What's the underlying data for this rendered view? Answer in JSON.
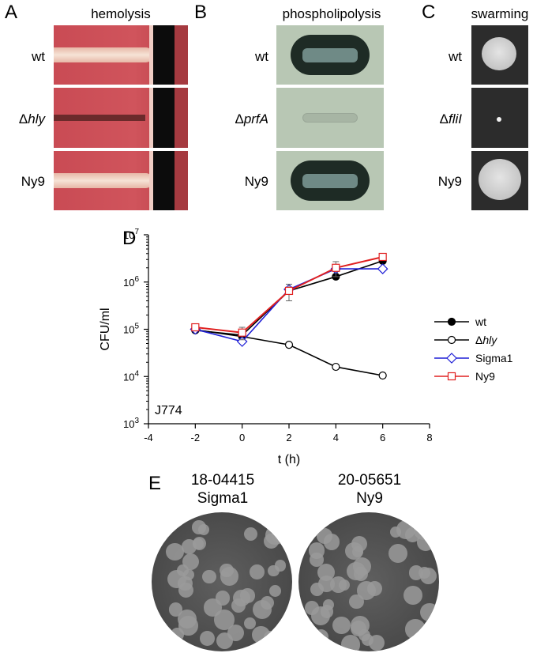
{
  "panels": {
    "A": {
      "letter": "A",
      "title": "hemolysis",
      "rows": [
        {
          "pre": "",
          "ital": "",
          "post": "wt"
        },
        {
          "pre": "Δ",
          "ital": "hly",
          "post": ""
        },
        {
          "pre": "",
          "ital": "",
          "post": "Ny9"
        }
      ]
    },
    "B": {
      "letter": "B",
      "title": "phospholipolysis",
      "rows": [
        {
          "pre": "",
          "ital": "",
          "post": "wt"
        },
        {
          "pre": "Δ",
          "ital": "prfA",
          "post": ""
        },
        {
          "pre": "",
          "ital": "",
          "post": "Ny9"
        }
      ]
    },
    "C": {
      "letter": "C",
      "title": "swarming",
      "rows": [
        {
          "pre": "",
          "ital": "",
          "post": "wt"
        },
        {
          "pre": "Δ",
          "ital": "fliI",
          "post": ""
        },
        {
          "pre": "",
          "ital": "",
          "post": "Ny9"
        }
      ]
    },
    "D": {
      "letter": "D"
    },
    "E": {
      "letter": "E",
      "plates": [
        {
          "line1": "18-04415",
          "line2": "Sigma1"
        },
        {
          "line1": "20-05651",
          "line2": "Ny9"
        }
      ]
    }
  },
  "chart_data": {
    "type": "line",
    "title": "",
    "xlabel": "t (h)",
    "ylabel": "CFU/ml",
    "annotation": "J774",
    "xlim": [
      -4,
      8
    ],
    "xticks": [
      -4,
      -2,
      0,
      2,
      4,
      6,
      8
    ],
    "ylim_log10": [
      3,
      7
    ],
    "yscale": "log",
    "yticks": [
      {
        "base": "10",
        "exp": "3"
      },
      {
        "base": "10",
        "exp": "4"
      },
      {
        "base": "10",
        "exp": "5"
      },
      {
        "base": "10",
        "exp": "6"
      },
      {
        "base": "10",
        "exp": "7"
      }
    ],
    "legend_position": "right",
    "series": [
      {
        "name": "wt",
        "italic_part": "",
        "prefix": "",
        "color": "#000000",
        "marker": "filled-circle",
        "x": [
          -2,
          0,
          2,
          4,
          6
        ],
        "y": [
          95000,
          75000,
          650000,
          1300000,
          2800000
        ],
        "err": [
          0,
          0,
          0,
          0,
          0
        ]
      },
      {
        "name": "",
        "prefix": "Δ",
        "italic_part": "hly",
        "color": "#000000",
        "marker": "open-circle",
        "x": [
          -2,
          0,
          2,
          4,
          6
        ],
        "y": [
          98000,
          70000,
          47000,
          16000,
          10500
        ],
        "err": [
          0,
          0,
          0,
          0,
          0
        ]
      },
      {
        "name": "Sigma1",
        "italic_part": "",
        "prefix": "",
        "color": "#1f1fd6",
        "marker": "open-diamond",
        "x": [
          -2,
          0,
          2,
          4,
          6
        ],
        "y": [
          100000,
          55000,
          700000,
          1900000,
          1900000
        ],
        "err": [
          0,
          0,
          0,
          0,
          0
        ]
      },
      {
        "name": "Ny9",
        "italic_part": "",
        "prefix": "",
        "color": "#e02020",
        "marker": "open-square",
        "x": [
          -2,
          0,
          2,
          4,
          6
        ],
        "y": [
          110000,
          85000,
          650000,
          2000000,
          3400000
        ],
        "err": [
          0,
          25000,
          250000,
          700000,
          0
        ]
      }
    ]
  }
}
